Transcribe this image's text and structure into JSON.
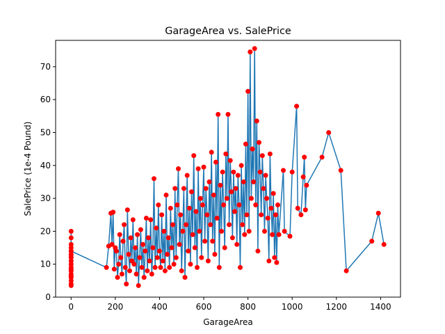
{
  "chart_data": {
    "type": "scatter",
    "title": "GarageArea vs. SalePrice",
    "xlabel": "GarageArea",
    "ylabel": "SalePrice (1e-4 Pound)",
    "xlim": [
      -70,
      1490
    ],
    "ylim": [
      0,
      78
    ],
    "xticks": [
      0,
      200,
      400,
      600,
      800,
      1000,
      1200,
      1400
    ],
    "yticks": [
      0,
      10,
      20,
      30,
      40,
      50,
      60,
      70
    ],
    "grid": false,
    "legend": "none",
    "colors": {
      "line": "#1f77b4",
      "marker": "#ff0000"
    },
    "series": [
      {
        "points": [
          [
            0,
            3.5
          ],
          [
            0,
            20
          ],
          [
            0,
            5
          ],
          [
            0,
            18
          ],
          [
            0,
            4
          ],
          [
            0,
            16
          ],
          [
            0,
            6
          ],
          [
            0,
            14
          ],
          [
            0,
            7
          ],
          [
            0,
            13
          ],
          [
            0,
            8
          ],
          [
            0,
            12
          ],
          [
            0,
            9
          ],
          [
            0,
            11
          ],
          [
            0,
            10
          ],
          [
            0,
            15
          ],
          [
            0,
            6.5
          ],
          [
            0,
            12.5
          ],
          [
            0,
            8.5
          ],
          [
            0,
            14
          ],
          [
            160,
            9
          ],
          [
            170,
            15.5
          ],
          [
            180,
            25.5
          ],
          [
            185,
            16
          ],
          [
            190,
            25.8
          ],
          [
            195,
            8.5
          ],
          [
            200,
            15
          ],
          [
            205,
            14
          ],
          [
            210,
            6
          ],
          [
            215,
            10
          ],
          [
            220,
            19
          ],
          [
            225,
            12
          ],
          [
            230,
            7
          ],
          [
            235,
            17
          ],
          [
            240,
            22
          ],
          [
            245,
            9
          ],
          [
            250,
            4
          ],
          [
            255,
            26.5
          ],
          [
            260,
            13
          ],
          [
            265,
            8
          ],
          [
            270,
            18
          ],
          [
            275,
            11
          ],
          [
            280,
            23.5
          ],
          [
            285,
            10
          ],
          [
            290,
            15
          ],
          [
            295,
            7
          ],
          [
            300,
            19
          ],
          [
            305,
            3.5
          ],
          [
            310,
            12
          ],
          [
            315,
            20.5
          ],
          [
            320,
            9
          ],
          [
            325,
            16
          ],
          [
            330,
            6
          ],
          [
            335,
            14
          ],
          [
            340,
            24
          ],
          [
            345,
            8
          ],
          [
            350,
            18
          ],
          [
            355,
            11
          ],
          [
            360,
            23.5
          ],
          [
            365,
            7
          ],
          [
            370,
            15
          ],
          [
            375,
            36
          ],
          [
            380,
            9
          ],
          [
            385,
            21
          ],
          [
            390,
            12
          ],
          [
            395,
            28
          ],
          [
            400,
            14
          ],
          [
            405,
            9
          ],
          [
            410,
            25
          ],
          [
            415,
            11
          ],
          [
            420,
            20
          ],
          [
            425,
            8
          ],
          [
            430,
            31
          ],
          [
            435,
            13
          ],
          [
            440,
            18
          ],
          [
            445,
            9
          ],
          [
            450,
            27
          ],
          [
            455,
            15
          ],
          [
            460,
            22
          ],
          [
            465,
            10
          ],
          [
            470,
            33
          ],
          [
            475,
            12
          ],
          [
            480,
            28
          ],
          [
            485,
            39
          ],
          [
            490,
            16
          ],
          [
            495,
            25
          ],
          [
            500,
            8
          ],
          [
            505,
            20
          ],
          [
            510,
            33
          ],
          [
            515,
            6
          ],
          [
            520,
            22
          ],
          [
            525,
            37
          ],
          [
            530,
            14
          ],
          [
            535,
            27
          ],
          [
            540,
            10
          ],
          [
            545,
            32
          ],
          [
            550,
            19
          ],
          [
            555,
            43
          ],
          [
            560,
            15
          ],
          [
            565,
            26
          ],
          [
            570,
            9
          ],
          [
            575,
            39
          ],
          [
            580,
            20
          ],
          [
            585,
            30
          ],
          [
            590,
            12
          ],
          [
            595,
            28
          ],
          [
            600,
            39.5
          ],
          [
            605,
            17
          ],
          [
            610,
            33
          ],
          [
            615,
            25
          ],
          [
            620,
            11
          ],
          [
            625,
            35
          ],
          [
            630,
            22
          ],
          [
            635,
            44
          ],
          [
            640,
            17
          ],
          [
            645,
            31
          ],
          [
            650,
            13
          ],
          [
            655,
            41
          ],
          [
            660,
            24
          ],
          [
            665,
            55.5
          ],
          [
            670,
            9
          ],
          [
            675,
            34
          ],
          [
            680,
            20
          ],
          [
            685,
            38
          ],
          [
            690,
            28
          ],
          [
            695,
            15
          ],
          [
            700,
            43.5
          ],
          [
            705,
            30
          ],
          [
            710,
            55.5
          ],
          [
            715,
            22
          ],
          [
            720,
            41.5
          ],
          [
            725,
            32
          ],
          [
            730,
            18
          ],
          [
            735,
            38
          ],
          [
            740,
            26
          ],
          [
            745,
            33
          ],
          [
            750,
            16
          ],
          [
            755,
            37
          ],
          [
            760,
            28
          ],
          [
            765,
            9
          ],
          [
            770,
            40
          ],
          [
            775,
            22
          ],
          [
            780,
            35
          ],
          [
            785,
            19
          ],
          [
            790,
            46.5
          ],
          [
            795,
            25
          ],
          [
            800,
            62.5
          ],
          [
            805,
            20
          ],
          [
            810,
            74.5
          ],
          [
            815,
            30
          ],
          [
            820,
            45
          ],
          [
            825,
            35
          ],
          [
            830,
            75.5
          ],
          [
            835,
            28
          ],
          [
            840,
            53.5
          ],
          [
            845,
            14
          ],
          [
            850,
            47
          ],
          [
            855,
            38
          ],
          [
            860,
            25
          ],
          [
            865,
            43
          ],
          [
            870,
            33
          ],
          [
            875,
            20
          ],
          [
            880,
            37
          ],
          [
            885,
            30
          ],
          [
            890,
            24
          ],
          [
            895,
            11
          ],
          [
            900,
            43.5
          ],
          [
            905,
            27
          ],
          [
            910,
            19
          ],
          [
            915,
            31.5
          ],
          [
            920,
            12
          ],
          [
            925,
            25
          ],
          [
            930,
            10.5
          ],
          [
            935,
            28
          ],
          [
            940,
            19
          ],
          [
            960,
            38.5
          ],
          [
            965,
            20
          ],
          [
            990,
            18.5
          ],
          [
            1000,
            38
          ],
          [
            1020,
            58
          ],
          [
            1025,
            27
          ],
          [
            1040,
            25
          ],
          [
            1050,
            36.5
          ],
          [
            1055,
            42.5
          ],
          [
            1060,
            26.5
          ],
          [
            1065,
            34
          ],
          [
            1135,
            42.5
          ],
          [
            1165,
            50
          ],
          [
            1220,
            38.5
          ],
          [
            1245,
            8
          ],
          [
            1360,
            17
          ],
          [
            1390,
            25.5
          ],
          [
            1415,
            16
          ]
        ]
      }
    ]
  }
}
